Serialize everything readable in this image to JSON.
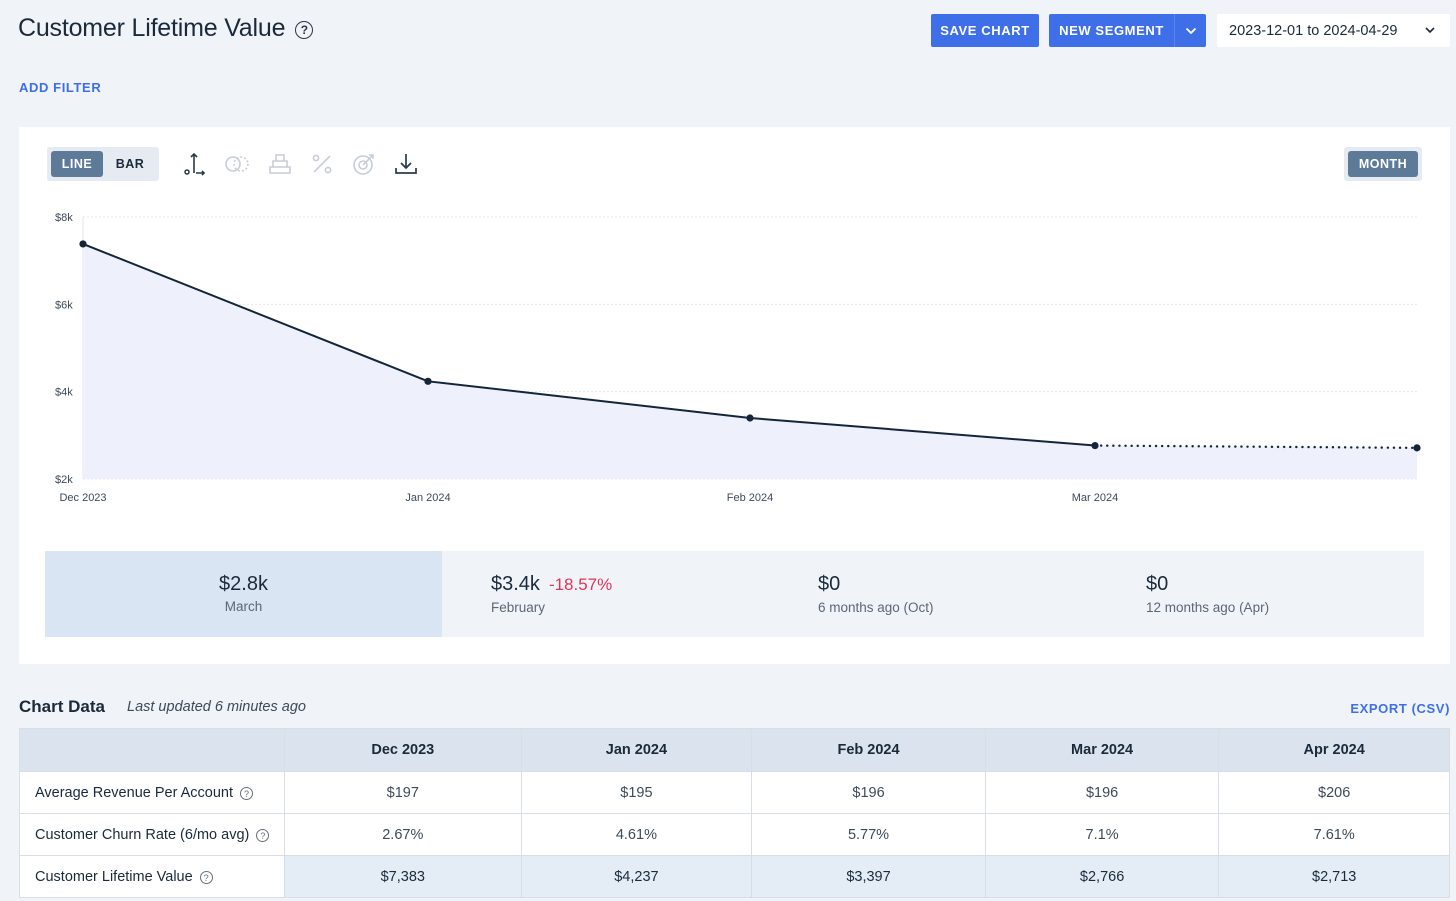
{
  "header": {
    "title": "Customer Lifetime Value",
    "help_icon": "?",
    "save_label": "SAVE CHART",
    "new_segment_label": "NEW SEGMENT",
    "date_range": "2023-12-01 to 2024-04-29"
  },
  "filters": {
    "add_filter_label": "ADD FILTER"
  },
  "chart_controls": {
    "line_label": "LINE",
    "bar_label": "BAR",
    "period_label": "MONTH",
    "tools": [
      "axis-icon",
      "compare-icon",
      "stack-icon",
      "percent-icon",
      "goal-icon",
      "download-icon"
    ]
  },
  "chart_data": {
    "type": "line",
    "categories": [
      "Dec 2023",
      "Jan 2024",
      "Feb 2024",
      "Mar 2024",
      "Apr 2024"
    ],
    "x_tick_labels": [
      "Dec 2023",
      "Jan 2024",
      "Feb 2024",
      "Mar 2024"
    ],
    "y_tick_labels": [
      "$2k",
      "$4k",
      "$6k",
      "$8k"
    ],
    "series": [
      {
        "values": [
          7383,
          4237,
          3397,
          2766,
          2713
        ]
      }
    ],
    "projected_from_index": 3,
    "ylim": [
      2000,
      8000
    ],
    "grid": true,
    "line_color": "#14253a",
    "fill_color": "#eef0fb"
  },
  "summary": {
    "current": {
      "value": "$2.8k",
      "label": "March"
    },
    "comparisons": [
      {
        "value": "$3.4k",
        "change": "-18.57%",
        "label": "February"
      },
      {
        "value": "$0",
        "change": "",
        "label": "6 months ago (Oct)"
      },
      {
        "value": "$0",
        "change": "",
        "label": "12 months ago (Apr)"
      }
    ]
  },
  "table": {
    "title": "Chart Data",
    "updated": "Last updated 6 minutes ago",
    "export_label": "EXPORT (CSV)",
    "columns": [
      "Dec 2023",
      "Jan 2024",
      "Feb 2024",
      "Mar 2024",
      "Apr 2024"
    ],
    "rows": [
      {
        "label": "Average Revenue Per Account",
        "values": [
          "$197",
          "$195",
          "$196",
          "$196",
          "$206"
        ]
      },
      {
        "label": "Customer Churn Rate (6/mo avg)",
        "values": [
          "2.67%",
          "4.61%",
          "5.77%",
          "7.1%",
          "7.61%"
        ]
      },
      {
        "label": "Customer Lifetime Value",
        "values": [
          "$7,383",
          "$4,237",
          "$3,397",
          "$2,766",
          "$2,713"
        ]
      }
    ]
  }
}
